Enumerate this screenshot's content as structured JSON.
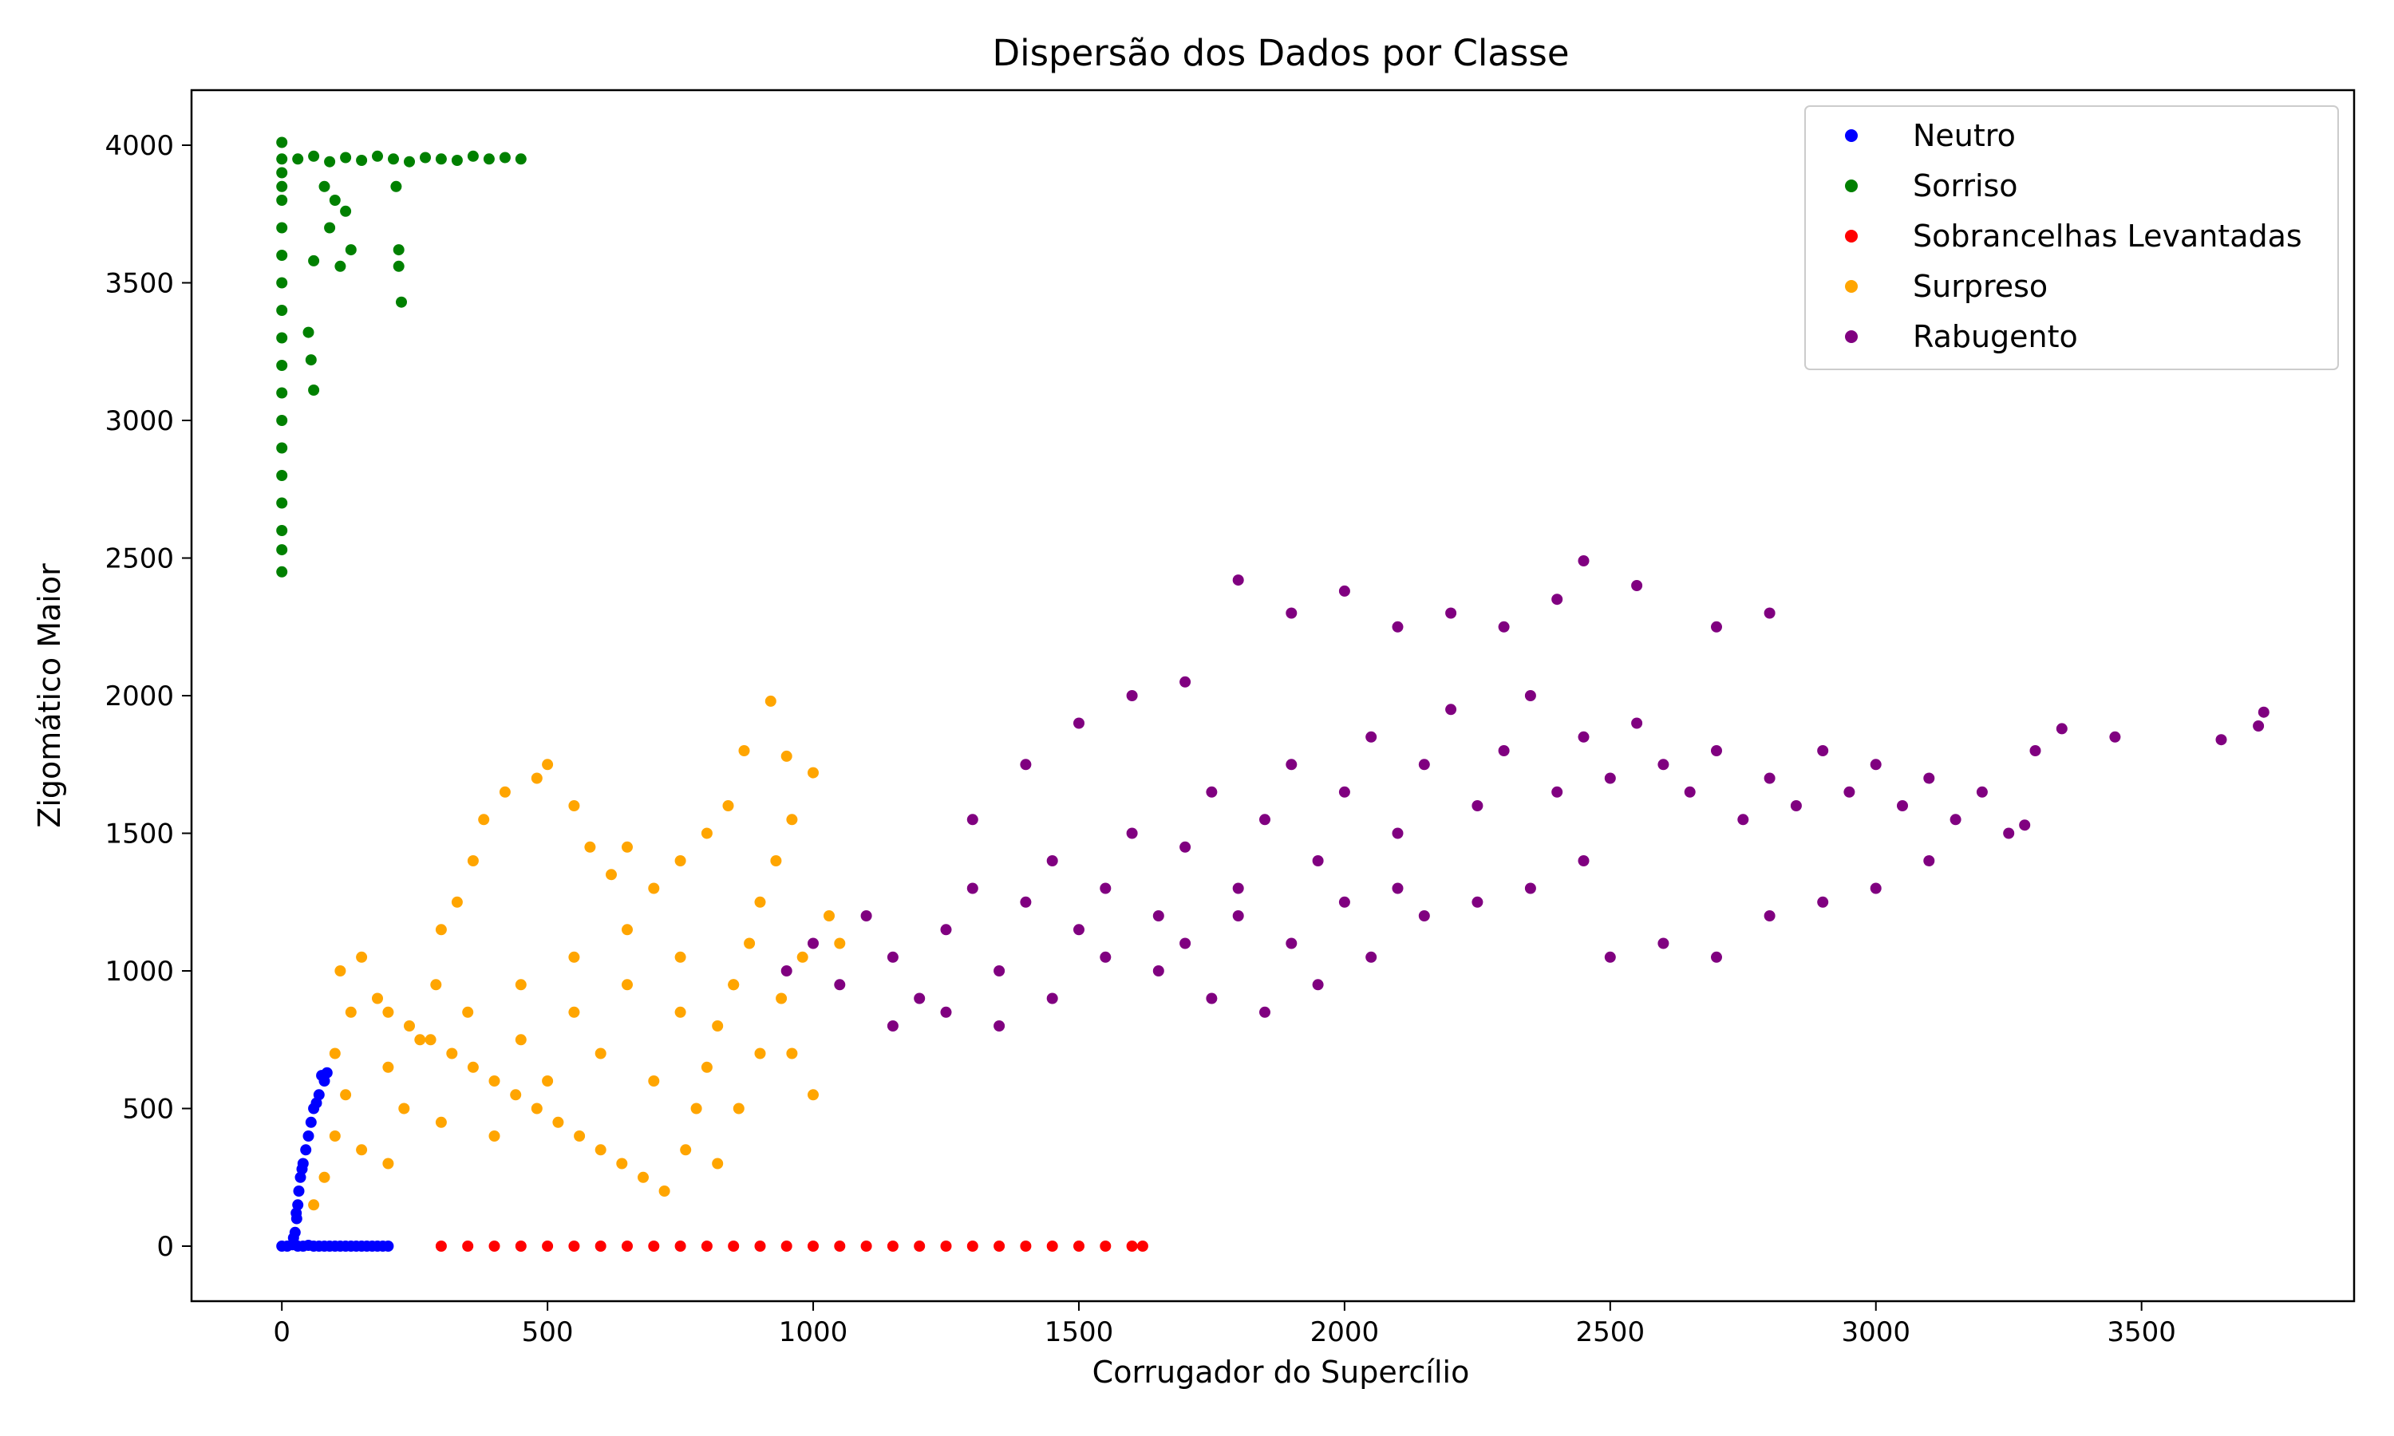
{
  "chart_data": {
    "type": "scatter",
    "title": "Dispersão dos Dados por Classe",
    "xlabel": "Corrugador do Supercílio",
    "ylabel": "Zigomático Maior",
    "xlim": [
      -170,
      3900
    ],
    "ylim": [
      -200,
      4200
    ],
    "xticks": [
      "0",
      "500",
      "1000",
      "1500",
      "2000",
      "2500",
      "3000",
      "3500"
    ],
    "xtick_values": [
      0,
      500,
      1000,
      1500,
      2000,
      2500,
      3000,
      3500
    ],
    "yticks": [
      "0",
      "500",
      "1000",
      "1500",
      "2000",
      "2500",
      "3000",
      "3500",
      "4000"
    ],
    "ytick_values": [
      0,
      500,
      1000,
      1500,
      2000,
      2500,
      3000,
      3500,
      4000
    ],
    "grid": false,
    "legend_position": "top-right",
    "series": [
      {
        "name": "Neutro",
        "color": "#0000ff",
        "points": [
          [
            0,
            0
          ],
          [
            10,
            0
          ],
          [
            20,
            5
          ],
          [
            30,
            0
          ],
          [
            40,
            0
          ],
          [
            50,
            3
          ],
          [
            60,
            0
          ],
          [
            70,
            0
          ],
          [
            80,
            0
          ],
          [
            90,
            0
          ],
          [
            100,
            0
          ],
          [
            110,
            0
          ],
          [
            120,
            0
          ],
          [
            130,
            0
          ],
          [
            140,
            0
          ],
          [
            150,
            0
          ],
          [
            160,
            0
          ],
          [
            170,
            0
          ],
          [
            180,
            0
          ],
          [
            190,
            0
          ],
          [
            200,
            0
          ],
          [
            25,
            50
          ],
          [
            28,
            100
          ],
          [
            30,
            150
          ],
          [
            32,
            200
          ],
          [
            35,
            250
          ],
          [
            40,
            300
          ],
          [
            45,
            350
          ],
          [
            50,
            400
          ],
          [
            55,
            450
          ],
          [
            60,
            500
          ],
          [
            70,
            550
          ],
          [
            80,
            600
          ],
          [
            85,
            630
          ],
          [
            75,
            620
          ],
          [
            65,
            520
          ],
          [
            22,
            30
          ],
          [
            27,
            120
          ],
          [
            38,
            280
          ]
        ]
      },
      {
        "name": "Sorriso",
        "color": "#008000",
        "points": [
          [
            0,
            3950
          ],
          [
            0,
            3900
          ],
          [
            0,
            3850
          ],
          [
            0,
            3800
          ],
          [
            0,
            3700
          ],
          [
            0,
            3600
          ],
          [
            0,
            3500
          ],
          [
            0,
            3400
          ],
          [
            0,
            3300
          ],
          [
            0,
            3200
          ],
          [
            0,
            3100
          ],
          [
            0,
            3000
          ],
          [
            0,
            2900
          ],
          [
            0,
            2800
          ],
          [
            0,
            2700
          ],
          [
            0,
            2600
          ],
          [
            0,
            2530
          ],
          [
            0,
            2450
          ],
          [
            0,
            4010
          ],
          [
            30,
            3950
          ],
          [
            60,
            3960
          ],
          [
            90,
            3940
          ],
          [
            120,
            3955
          ],
          [
            150,
            3945
          ],
          [
            180,
            3960
          ],
          [
            210,
            3950
          ],
          [
            240,
            3940
          ],
          [
            270,
            3955
          ],
          [
            300,
            3950
          ],
          [
            330,
            3945
          ],
          [
            360,
            3960
          ],
          [
            390,
            3950
          ],
          [
            420,
            3955
          ],
          [
            450,
            3950
          ],
          [
            80,
            3850
          ],
          [
            100,
            3800
          ],
          [
            120,
            3760
          ],
          [
            90,
            3700
          ],
          [
            60,
            3580
          ],
          [
            110,
            3560
          ],
          [
            50,
            3320
          ],
          [
            55,
            3220
          ],
          [
            60,
            3110
          ],
          [
            220,
            3620
          ],
          [
            220,
            3560
          ],
          [
            225,
            3430
          ],
          [
            215,
            3850
          ],
          [
            130,
            3620
          ]
        ]
      },
      {
        "name": "Sobrancelhas Levantadas",
        "color": "#ff0000",
        "points": [
          [
            300,
            0
          ],
          [
            350,
            0
          ],
          [
            400,
            0
          ],
          [
            450,
            0
          ],
          [
            500,
            0
          ],
          [
            550,
            0
          ],
          [
            600,
            0
          ],
          [
            650,
            0
          ],
          [
            700,
            0
          ],
          [
            750,
            0
          ],
          [
            800,
            0
          ],
          [
            850,
            0
          ],
          [
            900,
            0
          ],
          [
            950,
            0
          ],
          [
            1000,
            0
          ],
          [
            1050,
            0
          ],
          [
            1100,
            0
          ],
          [
            1150,
            0
          ],
          [
            1200,
            0
          ],
          [
            1250,
            0
          ],
          [
            1300,
            0
          ],
          [
            1350,
            0
          ],
          [
            1400,
            0
          ],
          [
            1450,
            0
          ],
          [
            1500,
            0
          ],
          [
            1550,
            0
          ],
          [
            1600,
            0
          ],
          [
            1620,
            0
          ]
        ]
      },
      {
        "name": "Surpreso",
        "color": "#ffa500",
        "points": [
          [
            60,
            150
          ],
          [
            80,
            250
          ],
          [
            100,
            400
          ],
          [
            120,
            550
          ],
          [
            100,
            700
          ],
          [
            130,
            850
          ],
          [
            110,
            1000
          ],
          [
            150,
            1050
          ],
          [
            180,
            900
          ],
          [
            200,
            650
          ],
          [
            230,
            500
          ],
          [
            260,
            750
          ],
          [
            290,
            950
          ],
          [
            300,
            1150
          ],
          [
            330,
            1250
          ],
          [
            360,
            1400
          ],
          [
            380,
            1550
          ],
          [
            420,
            1650
          ],
          [
            480,
            1700
          ],
          [
            500,
            1750
          ],
          [
            550,
            1600
          ],
          [
            580,
            1450
          ],
          [
            620,
            1350
          ],
          [
            650,
            1450
          ],
          [
            700,
            1300
          ],
          [
            750,
            1400
          ],
          [
            800,
            1500
          ],
          [
            840,
            1600
          ],
          [
            870,
            1800
          ],
          [
            920,
            1980
          ],
          [
            950,
            1780
          ],
          [
            1000,
            1720
          ],
          [
            960,
            1550
          ],
          [
            930,
            1400
          ],
          [
            900,
            1250
          ],
          [
            880,
            1100
          ],
          [
            850,
            950
          ],
          [
            820,
            800
          ],
          [
            800,
            650
          ],
          [
            780,
            500
          ],
          [
            760,
            350
          ],
          [
            720,
            200
          ],
          [
            680,
            250
          ],
          [
            640,
            300
          ],
          [
            600,
            350
          ],
          [
            560,
            400
          ],
          [
            520,
            450
          ],
          [
            480,
            500
          ],
          [
            440,
            550
          ],
          [
            400,
            600
          ],
          [
            360,
            650
          ],
          [
            320,
            700
          ],
          [
            280,
            750
          ],
          [
            240,
            800
          ],
          [
            200,
            850
          ],
          [
            350,
            850
          ],
          [
            450,
            950
          ],
          [
            550,
            1050
          ],
          [
            650,
            1150
          ],
          [
            750,
            1050
          ],
          [
            850,
            950
          ],
          [
            450,
            750
          ],
          [
            550,
            850
          ],
          [
            650,
            950
          ],
          [
            750,
            850
          ],
          [
            600,
            700
          ],
          [
            700,
            600
          ],
          [
            500,
            600
          ],
          [
            400,
            400
          ],
          [
            300,
            450
          ],
          [
            200,
            300
          ],
          [
            150,
            350
          ],
          [
            1000,
            550
          ],
          [
            960,
            700
          ],
          [
            940,
            900
          ],
          [
            1050,
            1100
          ],
          [
            1030,
            1200
          ],
          [
            980,
            1050
          ],
          [
            900,
            700
          ],
          [
            860,
            500
          ],
          [
            820,
            300
          ]
        ]
      },
      {
        "name": "Rabugento",
        "color": "#800080",
        "points": [
          [
            950,
            1000
          ],
          [
            1000,
            1100
          ],
          [
            1050,
            950
          ],
          [
            1100,
            1200
          ],
          [
            1150,
            1050
          ],
          [
            1200,
            900
          ],
          [
            1250,
            1150
          ],
          [
            1300,
            1300
          ],
          [
            1350,
            1000
          ],
          [
            1400,
            1250
          ],
          [
            1450,
            1400
          ],
          [
            1500,
            1150
          ],
          [
            1550,
            1300
          ],
          [
            1600,
            1500
          ],
          [
            1650,
            1200
          ],
          [
            1700,
            1450
          ],
          [
            1750,
            1650
          ],
          [
            1800,
            1300
          ],
          [
            1850,
            1550
          ],
          [
            1900,
            1750
          ],
          [
            1950,
            1400
          ],
          [
            2000,
            1650
          ],
          [
            2050,
            1850
          ],
          [
            2100,
            1500
          ],
          [
            2150,
            1750
          ],
          [
            2200,
            1950
          ],
          [
            2250,
            1600
          ],
          [
            2300,
            1800
          ],
          [
            2350,
            2000
          ],
          [
            2400,
            1650
          ],
          [
            2450,
            1850
          ],
          [
            2500,
            1700
          ],
          [
            2550,
            1900
          ],
          [
            2600,
            1750
          ],
          [
            2650,
            1650
          ],
          [
            2700,
            1800
          ],
          [
            2750,
            1550
          ],
          [
            2800,
            1700
          ],
          [
            2850,
            1600
          ],
          [
            2900,
            1800
          ],
          [
            2950,
            1650
          ],
          [
            3000,
            1750
          ],
          [
            3050,
            1600
          ],
          [
            3100,
            1700
          ],
          [
            3150,
            1550
          ],
          [
            3200,
            1650
          ],
          [
            3250,
            1500
          ],
          [
            3280,
            1530
          ],
          [
            3300,
            1800
          ],
          [
            3350,
            1880
          ],
          [
            3450,
            1850
          ],
          [
            3650,
            1840
          ],
          [
            3730,
            1940
          ],
          [
            3720,
            1890
          ],
          [
            1650,
            1000
          ],
          [
            1750,
            900
          ],
          [
            1850,
            850
          ],
          [
            1950,
            950
          ],
          [
            2050,
            1050
          ],
          [
            2150,
            1200
          ],
          [
            2250,
            1250
          ],
          [
            2350,
            1300
          ],
          [
            2450,
            1400
          ],
          [
            1550,
            1050
          ],
          [
            1450,
            900
          ],
          [
            1350,
            800
          ],
          [
            1250,
            850
          ],
          [
            1150,
            800
          ],
          [
            1800,
            2420
          ],
          [
            1900,
            2300
          ],
          [
            2000,
            2380
          ],
          [
            2100,
            2250
          ],
          [
            2200,
            2300
          ],
          [
            2300,
            2250
          ],
          [
            2400,
            2350
          ],
          [
            2450,
            2490
          ],
          [
            2550,
            2400
          ],
          [
            2700,
            2250
          ],
          [
            2800,
            2300
          ],
          [
            1300,
            1550
          ],
          [
            1400,
            1750
          ],
          [
            1500,
            1900
          ],
          [
            1600,
            2000
          ],
          [
            1700,
            2050
          ],
          [
            2800,
            1200
          ],
          [
            2900,
            1250
          ],
          [
            3000,
            1300
          ],
          [
            3100,
            1400
          ],
          [
            2600,
            1100
          ],
          [
            2700,
            1050
          ],
          [
            2500,
            1050
          ],
          [
            1900,
            1100
          ],
          [
            2000,
            1250
          ],
          [
            2100,
            1300
          ],
          [
            1700,
            1100
          ],
          [
            1800,
            1200
          ]
        ]
      }
    ]
  }
}
